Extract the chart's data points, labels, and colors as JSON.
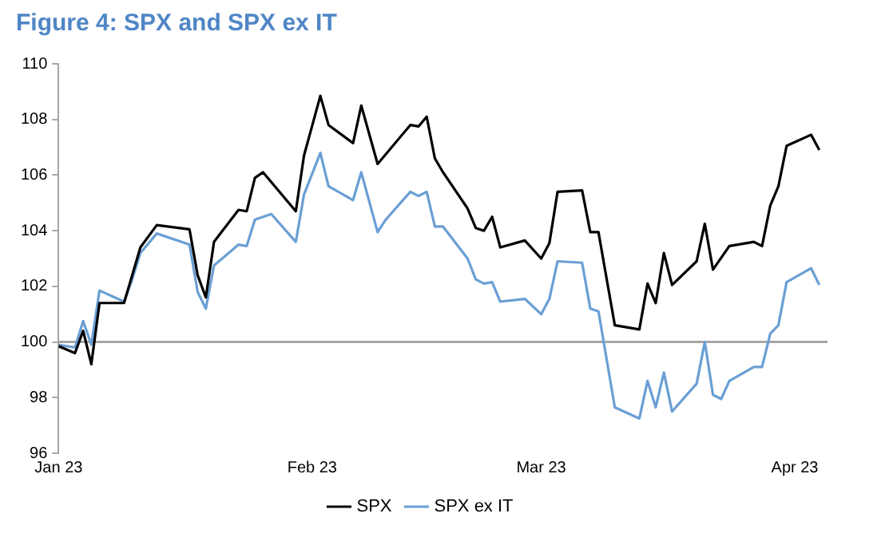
{
  "chart_data": {
    "type": "line",
    "title": "Figure 4: SPX and SPX ex IT",
    "xlim": [
      "2023-01-01",
      "2023-04-05"
    ],
    "xticks": [
      {
        "value": "2023-01-01",
        "label": "Jan 23"
      },
      {
        "value": "2023-02-01",
        "label": "Feb 23"
      },
      {
        "value": "2023-03-01",
        "label": "Mar 23"
      },
      {
        "value": "2023-04-01",
        "label": "Apr 23"
      }
    ],
    "ylim": [
      96,
      110
    ],
    "yticks": [
      96,
      98,
      100,
      102,
      104,
      106,
      108,
      110
    ],
    "grid": false,
    "legend": "bottom",
    "marker": "none",
    "line_style": "solid",
    "ref_lines": [
      {
        "axis": "y",
        "value": 100,
        "color": "#a6a6a6"
      }
    ],
    "series": [
      {
        "name": "SPX",
        "color": "#000000",
        "x": [
          "2023-01-01",
          "2023-01-03",
          "2023-01-04",
          "2023-01-05",
          "2023-01-06",
          "2023-01-09",
          "2023-01-11",
          "2023-01-13",
          "2023-01-17",
          "2023-01-18",
          "2023-01-19",
          "2023-01-20",
          "2023-01-23",
          "2023-01-24",
          "2023-01-25",
          "2023-01-26",
          "2023-01-30",
          "2023-01-31",
          "2023-02-02",
          "2023-02-03",
          "2023-02-06",
          "2023-02-07",
          "2023-02-09",
          "2023-02-13",
          "2023-02-14",
          "2023-02-15",
          "2023-02-16",
          "2023-02-17",
          "2023-02-20",
          "2023-02-21",
          "2023-02-22",
          "2023-02-23",
          "2023-02-24",
          "2023-02-27",
          "2023-03-01",
          "2023-03-02",
          "2023-03-03",
          "2023-03-06",
          "2023-03-07",
          "2023-03-08",
          "2023-03-10",
          "2023-03-13",
          "2023-03-14",
          "2023-03-15",
          "2023-03-16",
          "2023-03-17",
          "2023-03-20",
          "2023-03-21",
          "2023-03-22",
          "2023-03-24",
          "2023-03-27",
          "2023-03-28",
          "2023-03-29",
          "2023-03-30",
          "2023-03-31",
          "2023-04-03",
          "2023-04-04"
        ],
        "values": [
          99.85,
          99.6,
          100.4,
          99.2,
          101.4,
          101.4,
          103.4,
          104.2,
          104.05,
          102.4,
          101.6,
          103.6,
          104.75,
          104.7,
          105.9,
          106.1,
          104.7,
          106.7,
          108.85,
          107.8,
          107.15,
          108.5,
          106.4,
          107.8,
          107.75,
          108.1,
          106.6,
          106.1,
          104.8,
          104.1,
          104.0,
          104.5,
          103.4,
          103.65,
          103.0,
          103.55,
          105.4,
          105.45,
          103.95,
          103.95,
          100.6,
          100.45,
          102.1,
          101.4,
          103.2,
          102.05,
          102.9,
          104.25,
          102.6,
          103.45,
          103.6,
          103.45,
          104.9,
          105.6,
          107.05,
          107.45,
          106.9
        ]
      },
      {
        "name": "SPX ex IT",
        "color": "#6a9fd4",
        "x": [
          "2023-01-01",
          "2023-01-03",
          "2023-01-04",
          "2023-01-05",
          "2023-01-06",
          "2023-01-09",
          "2023-01-10",
          "2023-01-11",
          "2023-01-13",
          "2023-01-17",
          "2023-01-18",
          "2023-01-19",
          "2023-01-20",
          "2023-01-23",
          "2023-01-24",
          "2023-01-25",
          "2023-01-27",
          "2023-01-30",
          "2023-01-31",
          "2023-02-02",
          "2023-02-03",
          "2023-02-06",
          "2023-02-07",
          "2023-02-09",
          "2023-02-10",
          "2023-02-13",
          "2023-02-14",
          "2023-02-15",
          "2023-02-16",
          "2023-02-17",
          "2023-02-20",
          "2023-02-21",
          "2023-02-22",
          "2023-02-23",
          "2023-02-24",
          "2023-02-27",
          "2023-03-01",
          "2023-03-02",
          "2023-03-03",
          "2023-03-06",
          "2023-03-07",
          "2023-03-08",
          "2023-03-10",
          "2023-03-13",
          "2023-03-14",
          "2023-03-15",
          "2023-03-16",
          "2023-03-17",
          "2023-03-20",
          "2023-03-21",
          "2023-03-22",
          "2023-03-23",
          "2023-03-24",
          "2023-03-27",
          "2023-03-28",
          "2023-03-29",
          "2023-03-30",
          "2023-03-31",
          "2023-04-03",
          "2023-04-04"
        ],
        "values": [
          99.9,
          99.8,
          100.75,
          99.9,
          101.85,
          101.45,
          102.25,
          103.2,
          103.9,
          103.5,
          101.8,
          101.2,
          102.75,
          103.5,
          103.45,
          104.4,
          104.6,
          103.6,
          105.3,
          106.8,
          105.6,
          105.1,
          106.1,
          103.95,
          104.4,
          105.4,
          105.25,
          105.4,
          104.15,
          104.15,
          103.0,
          102.25,
          102.1,
          102.15,
          101.45,
          101.55,
          101.0,
          101.55,
          102.9,
          102.85,
          101.2,
          101.1,
          97.65,
          97.25,
          98.6,
          97.65,
          98.9,
          97.5,
          98.5,
          100.0,
          98.1,
          97.95,
          98.6,
          99.1,
          99.1,
          100.3,
          100.6,
          102.15,
          102.65,
          102.05
        ]
      }
    ]
  }
}
